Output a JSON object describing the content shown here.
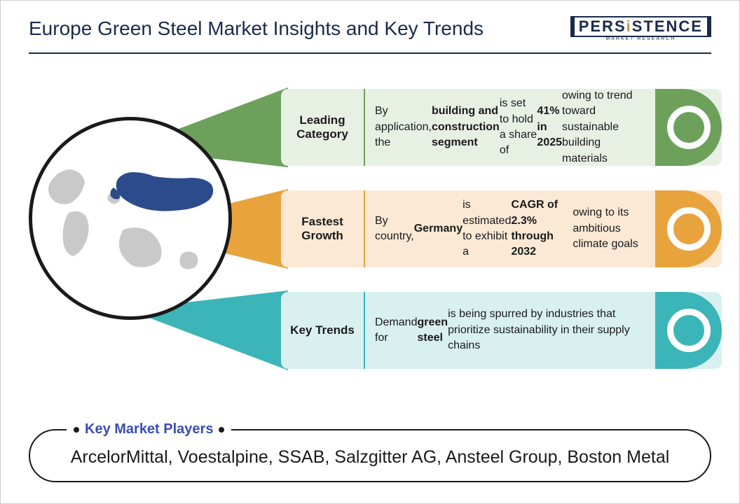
{
  "title": "Europe Green Steel Market Insights and Key Trends",
  "logo": {
    "text": "PERSISTENCE",
    "accent_index": 4,
    "sub": "MARKET RESEARCH"
  },
  "colors": {
    "green": {
      "accent": "#6da15b",
      "fill": "#e8f0e4"
    },
    "orange": {
      "accent": "#e8a33d",
      "fill": "#fbe9d6"
    },
    "teal": {
      "accent": "#3bb5b8",
      "fill": "#d9f0f1"
    },
    "navy": "#1a2b4a",
    "map_land": "#c9c9c9",
    "map_highlight": "#2c4b8a"
  },
  "rows": [
    {
      "label": "Leading Category",
      "body_html": "By application, the <b>building and construction segment</b> is set to hold a share of <b>41% in 2025</b> owing to trend toward sustainable building materials"
    },
    {
      "label": "Fastest Growth",
      "body_html": "By country, <b>Germany</b> is estimated to exhibit a <b>CAGR of 2.3% through 2032</b> owing to its ambitious climate goals"
    },
    {
      "label": "Key Trends",
      "body_html": "Demand for <b>green steel</b> is being spurred by industries that prioritize sustainability in their supply chains"
    }
  ],
  "players": {
    "title": "Key Market Players",
    "list": "ArcelorMittal, Voestalpine, SSAB, Salzgitter AG, Ansteel Group, Boston Metal"
  }
}
